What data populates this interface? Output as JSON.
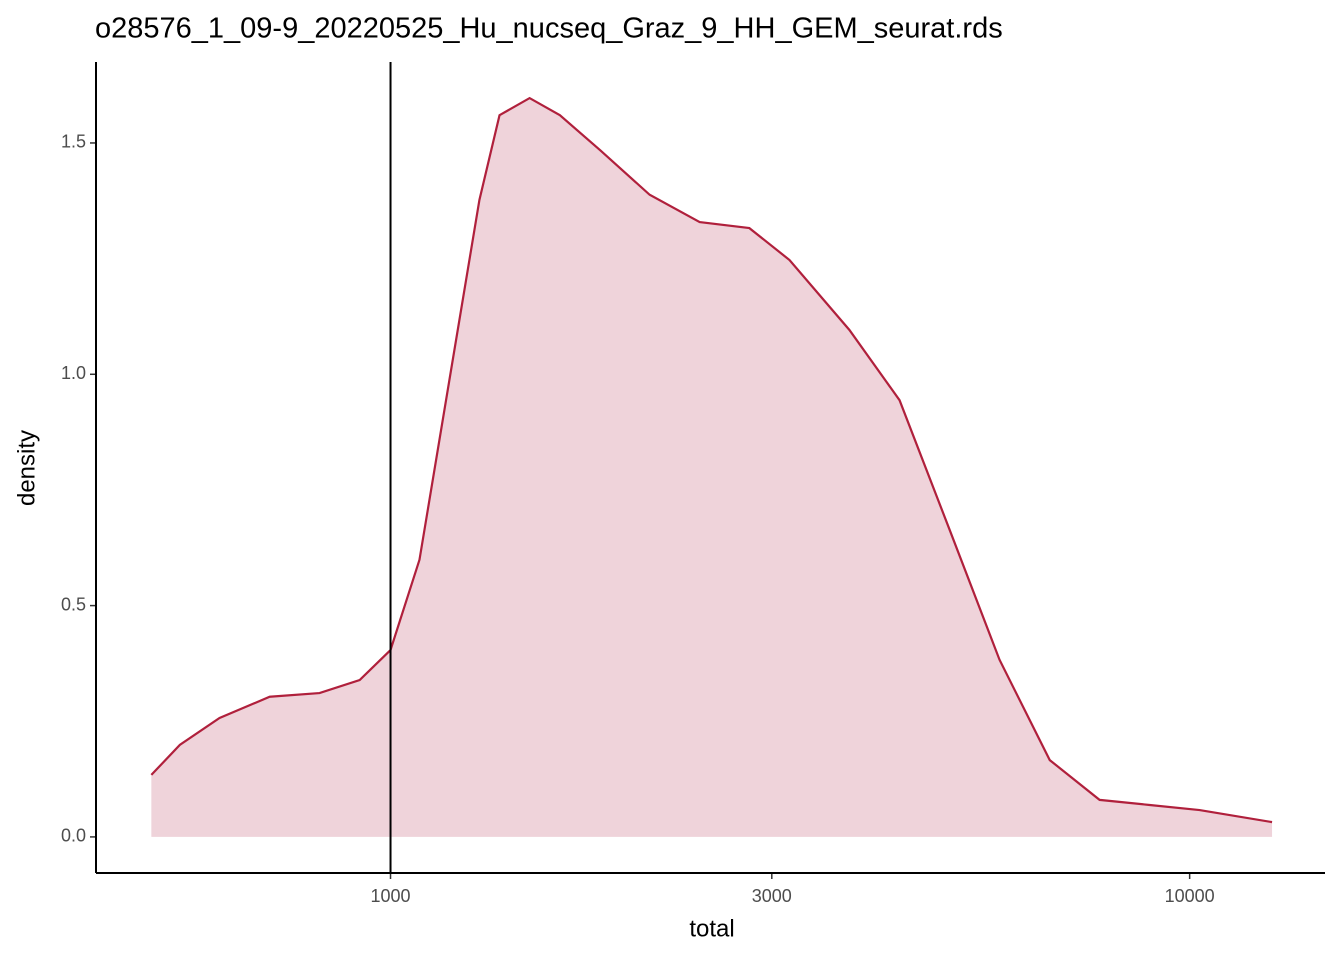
{
  "chart_data": {
    "type": "density",
    "title": "o28576_1_09-9_20220525_Hu_nucseq_Graz_9_HH_GEM_seurat.rds",
    "x_label": "total",
    "y_label": "density",
    "x": [
      502,
      545,
      611,
      706,
      815,
      915,
      1000,
      1087,
      1185,
      1292,
      1369,
      1493,
      1629,
      1828,
      2110,
      2437,
      2812,
      3157,
      3751,
      4335,
      5010,
      5782,
      6683,
      7715,
      8913,
      10290,
      12680
    ],
    "values": [
      0.134,
      0.199,
      0.257,
      0.303,
      0.311,
      0.339,
      0.404,
      0.599,
      0.988,
      1.377,
      1.56,
      1.597,
      1.56,
      1.485,
      1.388,
      1.329,
      1.316,
      1.247,
      1.096,
      0.944,
      0.663,
      0.383,
      0.166,
      0.08,
      0.069,
      0.058,
      0.032
    ],
    "color": "#b0203c",
    "fill": "#efd3da",
    "vline": 1000,
    "xlog": true,
    "xlim": [
      428,
      14770
    ],
    "xticks": [
      1000,
      3000,
      10000
    ],
    "ylim": [
      -0.078,
      1.675
    ],
    "yticks": [
      {
        "value": 0,
        "label": "0.0"
      },
      {
        "value": 0.5,
        "label": "0.5"
      },
      {
        "value": 1,
        "label": "1.0"
      },
      {
        "value": 1.5,
        "label": "1.5"
      }
    ]
  }
}
